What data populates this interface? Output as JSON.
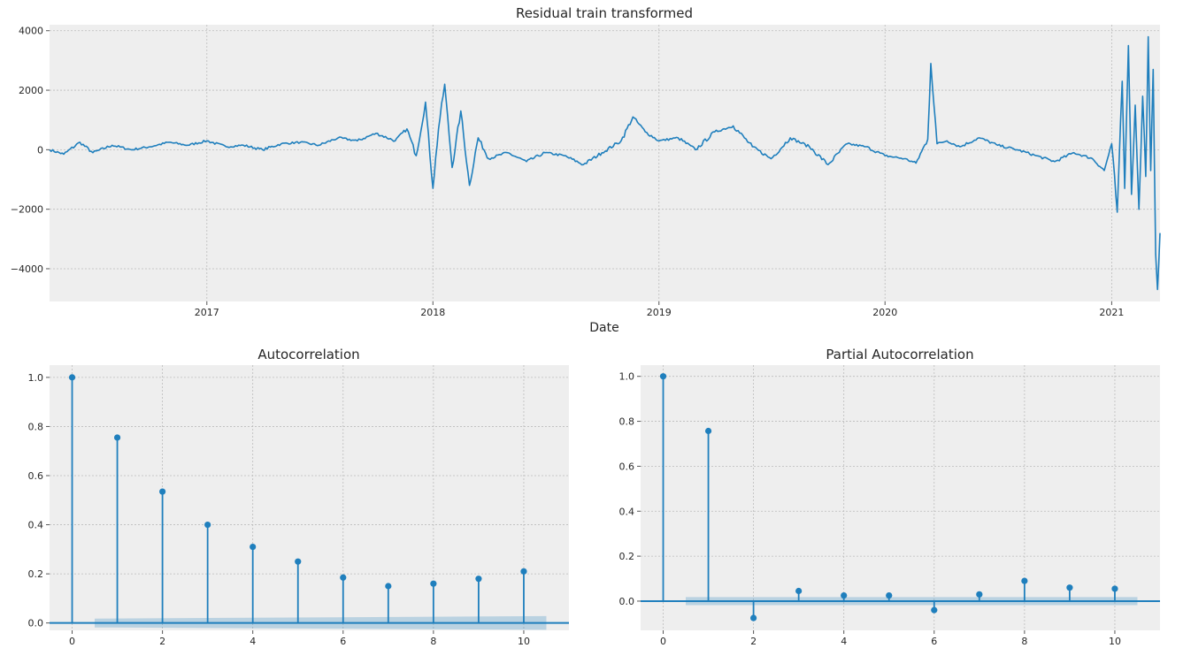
{
  "chart_data": [
    {
      "type": "line",
      "title": "Residual train transformed",
      "xlabel": "Date",
      "ylabel": "",
      "x_range": [
        "2016-04-22",
        "2021-03-20"
      ],
      "ylim": [
        -5100,
        4200
      ],
      "grid": true,
      "x_ticks": [
        {
          "x": "2017-01-01",
          "label": "2017"
        },
        {
          "x": "2018-01-01",
          "label": "2018"
        },
        {
          "x": "2019-01-01",
          "label": "2019"
        },
        {
          "x": "2020-01-01",
          "label": "2020"
        },
        {
          "x": "2021-01-01",
          "label": "2021"
        }
      ],
      "y_ticks": [
        {
          "v": 4000,
          "label": "4000"
        },
        {
          "v": 2000,
          "label": "2000"
        },
        {
          "v": 0,
          "label": "0"
        },
        {
          "v": -2000,
          "label": "−2000"
        },
        {
          "v": -4000,
          "label": "−4000"
        }
      ],
      "color": "#1f7fbd",
      "series": [
        {
          "x": [
            "2016-04-22",
            "2016-05-15",
            "2016-06-10",
            "2016-07-01",
            "2016-08-01",
            "2016-09-01",
            "2016-10-01",
            "2016-11-01",
            "2016-12-01",
            "2017-01-01",
            "2017-02-01",
            "2017-03-01",
            "2017-04-01",
            "2017-05-01",
            "2017-06-01",
            "2017-07-01",
            "2017-08-01",
            "2017-09-01",
            "2017-10-01",
            "2017-11-01",
            "2017-11-20",
            "2017-12-05",
            "2017-12-20",
            "2018-01-01",
            "2018-01-10",
            "2018-01-20",
            "2018-02-01",
            "2018-02-15",
            "2018-03-01",
            "2018-03-15",
            "2018-04-01",
            "2018-05-01",
            "2018-06-01",
            "2018-07-01",
            "2018-08-01",
            "2018-09-01",
            "2018-10-01",
            "2018-11-01",
            "2018-11-20",
            "2018-12-10",
            "2019-01-01",
            "2019-02-01",
            "2019-03-01",
            "2019-04-01",
            "2019-05-01",
            "2019-06-01",
            "2019-07-01",
            "2019-08-01",
            "2019-09-01",
            "2019-10-01",
            "2019-11-01",
            "2019-12-01",
            "2020-01-01",
            "2020-02-01",
            "2020-02-20",
            "2020-03-10",
            "2020-03-15",
            "2020-03-25",
            "2020-04-10",
            "2020-05-01",
            "2020-06-01",
            "2020-07-01",
            "2020-08-01",
            "2020-09-01",
            "2020-10-01",
            "2020-11-01",
            "2020-12-01",
            "2020-12-20",
            "2021-01-01",
            "2021-01-10",
            "2021-01-18",
            "2021-01-22",
            "2021-01-28",
            "2021-02-02",
            "2021-02-08",
            "2021-02-14",
            "2021-02-20",
            "2021-02-25",
            "2021-03-01",
            "2021-03-05",
            "2021-03-09",
            "2021-03-13",
            "2021-03-16",
            "2021-03-20"
          ],
          "y": [
            0,
            -150,
            250,
            -100,
            150,
            0,
            100,
            250,
            150,
            300,
            100,
            150,
            0,
            200,
            250,
            150,
            400,
            300,
            550,
            300,
            700,
            -200,
            1600,
            -1300,
            700,
            2200,
            -600,
            1300,
            -1200,
            400,
            -300,
            -100,
            -400,
            -100,
            -200,
            -500,
            -100,
            300,
            1100,
            600,
            300,
            400,
            0,
            600,
            800,
            100,
            -300,
            400,
            100,
            -500,
            200,
            100,
            -200,
            -300,
            -450,
            350,
            2900,
            200,
            300,
            100,
            400,
            150,
            0,
            -200,
            -400,
            -100,
            -300,
            -700,
            200,
            -2100,
            2300,
            -1300,
            3500,
            -1500,
            1500,
            -2000,
            1800,
            -900,
            3800,
            -700,
            2700,
            -3500,
            -4700,
            -2800
          ]
        }
      ]
    },
    {
      "type": "stem",
      "title": "Autocorrelation",
      "xlabel": "",
      "ylabel": "",
      "xlim": [
        -0.5,
        11.0
      ],
      "ylim": [
        -0.03,
        1.05
      ],
      "grid": true,
      "x_ticks": [
        0,
        2,
        4,
        6,
        8,
        10
      ],
      "y_ticks": [
        0.0,
        0.2,
        0.4,
        0.6,
        0.8,
        1.0
      ],
      "y_tick_labels": [
        "0.0",
        "0.2",
        "0.4",
        "0.6",
        "0.8",
        "1.0"
      ],
      "lags": [
        0,
        1,
        2,
        3,
        4,
        5,
        6,
        7,
        8,
        9,
        10
      ],
      "values": [
        1.0,
        0.755,
        0.535,
        0.4,
        0.31,
        0.25,
        0.185,
        0.15,
        0.16,
        0.18,
        0.21
      ],
      "confidence_band": {
        "from_lag": 0.5,
        "to_lag": 10.5,
        "upper_start": 0.018,
        "upper_end": 0.028,
        "lower_start": -0.018,
        "lower_end": -0.028
      },
      "color": "#1f7fbd"
    },
    {
      "type": "stem",
      "title": "Partial Autocorrelation",
      "xlabel": "",
      "ylabel": "",
      "xlim": [
        -0.5,
        11.0
      ],
      "ylim": [
        -0.13,
        1.05
      ],
      "grid": true,
      "x_ticks": [
        0,
        2,
        4,
        6,
        8,
        10
      ],
      "y_ticks": [
        0.0,
        0.2,
        0.4,
        0.6,
        0.8,
        1.0
      ],
      "y_tick_labels": [
        "0.0",
        "0.2",
        "0.4",
        "0.6",
        "0.8",
        "1.0"
      ],
      "lags": [
        0,
        1,
        2,
        3,
        4,
        5,
        6,
        7,
        8,
        9,
        10
      ],
      "values": [
        1.0,
        0.757,
        -0.075,
        0.045,
        0.025,
        0.025,
        -0.04,
        0.03,
        0.09,
        0.06,
        0.055
      ],
      "confidence_band": {
        "from_lag": 0.5,
        "to_lag": 10.5,
        "upper_start": 0.018,
        "upper_end": 0.018,
        "lower_start": -0.018,
        "lower_end": -0.018
      },
      "color": "#1f7fbd"
    }
  ]
}
